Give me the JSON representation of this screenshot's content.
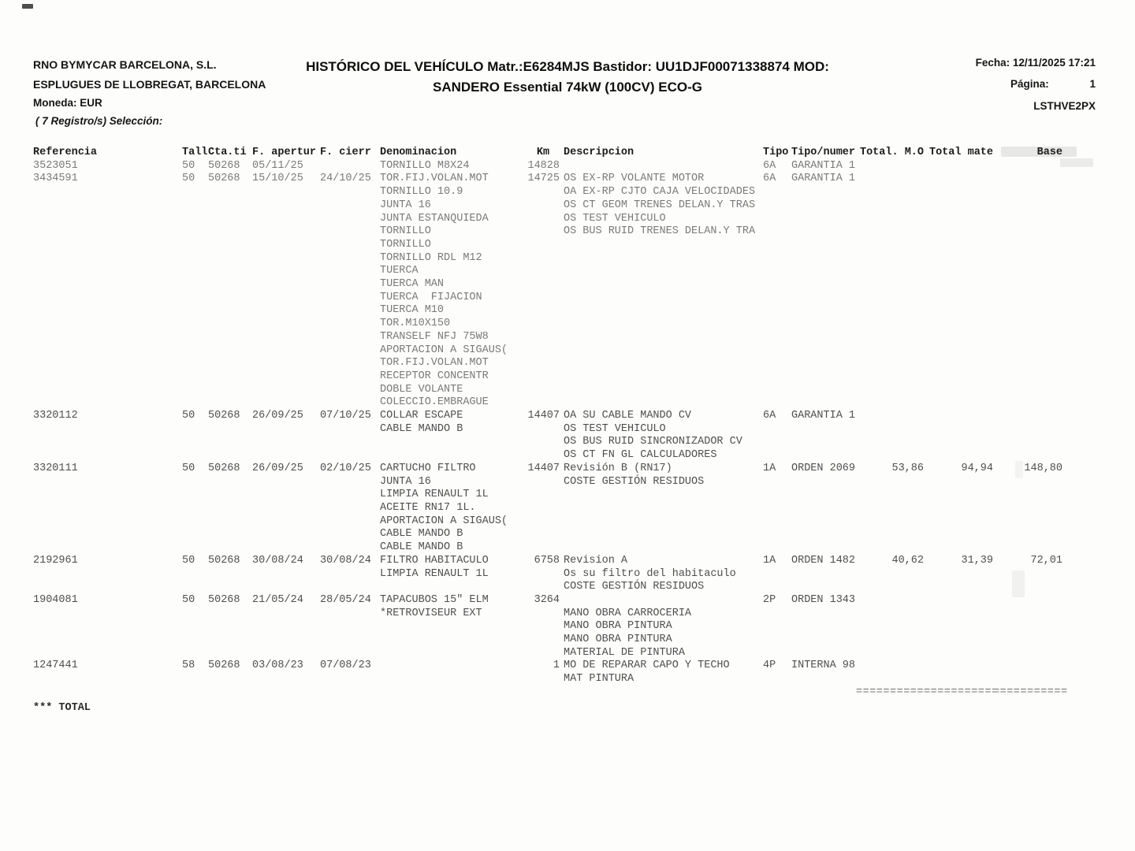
{
  "header": {
    "company_line1": "RNO BYMYCAR BARCELONA, S.L.",
    "company_line2": "ESPLUGUES DE LLOBREGAT, BARCELONA",
    "title_line1": "HISTÓRICO DEL VEHÍCULO Matr.:E6284MJS Bastidor: UU1DJF00071338874 MOD:",
    "title_line2": "SANDERO Essential 74kW (100CV) ECO-G",
    "fecha": "Fecha: 12/11/2025 17:21",
    "pagina_label": "Página:",
    "pagina_value": "1",
    "report_code": "LSTHVE2PX",
    "moneda": "Moneda: EUR",
    "seleccion": "( 7 Registro/s) Selección:"
  },
  "table": {
    "headers": [
      "Referencia",
      "Tall",
      "Cta.ti",
      "F. apertur",
      "F. cierr",
      "Denominacion",
      "Km",
      "Descripcion",
      "Tipo",
      "Tipo/numer",
      "Total. M.O",
      "Total mate",
      "Base"
    ],
    "rows": [
      {
        "referencia": "3523051",
        "tall": "50",
        "cta": "50268",
        "f_apertur": "05/11/25",
        "f_cierr": "",
        "denominacion": "TORNILLO M8X24",
        "km": "14828",
        "descripcion": "",
        "tipo": "6A",
        "tipo_numer": "GARANTIA 1",
        "total_mo": "",
        "total_mate": "",
        "base": ""
      },
      {
        "referencia": "3434591",
        "tall": "50",
        "cta": "50268",
        "f_apertur": "15/10/25",
        "f_cierr": "24/10/25",
        "denominacion": "TOR.FIJ.VOLAN.MOT\nTORNILLO 10.9\nJUNTA 16\nJUNTA ESTANQUIEDA\nTORNILLO\nTORNILLO\nTORNILLO RDL M12\nTUERCA\nTUERCA MAN\nTUERCA  FIJACION\nTUERCA M10\nTOR.M10X150\nTRANSELF NFJ 75W8\nAPORTACION A SIGAUS(\nTOR.FIJ.VOLAN.MOT\nRECEPTOR CONCENTR\nDOBLE VOLANTE\nCOLECCIO.EMBRAGUE",
        "km": "14725",
        "descripcion": "OS EX-RP VOLANTE MOTOR\nOA EX-RP CJTO CAJA VELOCIDADES\nOS CT GEOM TRENES DELAN.Y TRAS\nOS TEST VEHICULO\nOS BUS RUID TRENES DELAN.Y TRA",
        "tipo": "6A",
        "tipo_numer": "GARANTIA 1",
        "total_mo": "",
        "total_mate": "",
        "base": ""
      },
      {
        "referencia": "3320112",
        "tall": "50",
        "cta": "50268",
        "f_apertur": "26/09/25",
        "f_cierr": "07/10/25",
        "denominacion": "COLLAR ESCAPE\nCABLE MANDO B",
        "km": "14407",
        "descripcion": "OA SU CABLE MANDO CV\nOS TEST VEHICULO\nOS BUS RUID SINCRONIZADOR CV\nOS CT FN GL CALCULADORES",
        "tipo": "6A",
        "tipo_numer": "GARANTIA 1",
        "total_mo": "",
        "total_mate": "",
        "base": ""
      },
      {
        "referencia": "3320111",
        "tall": "50",
        "cta": "50268",
        "f_apertur": "26/09/25",
        "f_cierr": "02/10/25",
        "denominacion": "CARTUCHO FILTRO\nJUNTA 16\nLIMPIA RENAULT 1L\nACEITE RN17 1L.\nAPORTACION A SIGAUS(\nCABLE MANDO B\nCABLE MANDO B",
        "km": "14407",
        "descripcion": "Revisión B (RN17)\nCOSTE GESTIÓN RESIDUOS",
        "tipo": "1A",
        "tipo_numer": "ORDEN 2069",
        "total_mo": "53,86",
        "total_mate": "94,94",
        "base": "148,80"
      },
      {
        "referencia": "2192961",
        "tall": "50",
        "cta": "50268",
        "f_apertur": "30/08/24",
        "f_cierr": "30/08/24",
        "denominacion": "FILTRO HABITACULO\nLIMPIA RENAULT 1L",
        "km": "6758",
        "descripcion": "Revision A\nOs su filtro del habitaculo\nCOSTE GESTIÓN RESIDUOS",
        "tipo": "1A",
        "tipo_numer": "ORDEN 1482",
        "total_mo": "40,62",
        "total_mate": "31,39",
        "base": "72,01"
      },
      {
        "referencia": "1904081",
        "tall": "50",
        "cta": "50268",
        "f_apertur": "21/05/24",
        "f_cierr": "28/05/24",
        "denominacion": "TAPACUBOS 15\" ELM\n*RETROVISEUR EXT",
        "km": "3264",
        "descripcion": "\nMANO OBRA CARROCERIA\nMANO OBRA PINTURA\nMANO OBRA PINTURA\nMATERIAL DE PINTURA",
        "tipo": "2P",
        "tipo_numer": "ORDEN 1343",
        "total_mo": "",
        "total_mate": "",
        "base": ""
      },
      {
        "referencia": "1247441",
        "tall": "58",
        "cta": "50268",
        "f_apertur": "03/08/23",
        "f_cierr": "07/08/23",
        "denominacion": "",
        "km": "1",
        "descripcion": "MO DE REPARAR CAPO Y TECHO\nMAT PINTURA",
        "tipo": "4P",
        "tipo_numer": "INTERNA 98",
        "total_mo": "",
        "total_mate": "",
        "base": ""
      }
    ]
  },
  "footer": {
    "totals_rule": "===========",
    "total_label": "*** TOTAL"
  }
}
